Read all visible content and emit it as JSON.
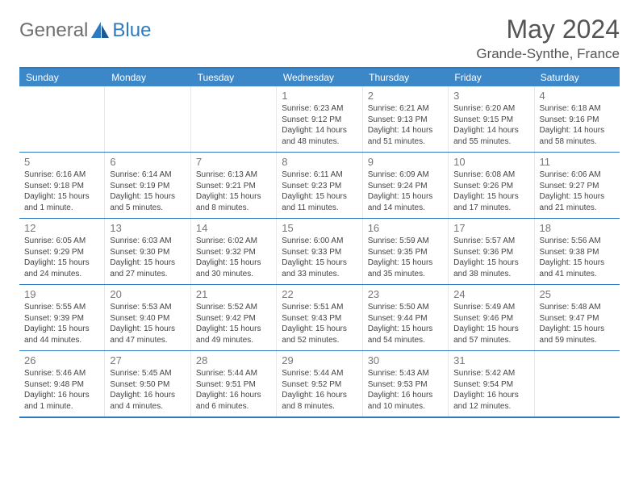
{
  "brand": {
    "left": "General",
    "right": "Blue"
  },
  "title": "May 2024",
  "location": "Grande-Synthe, France",
  "colors": {
    "header_bg": "#3b87c8",
    "border": "#2e7ac0",
    "title_text": "#555555",
    "body_text": "#444444",
    "daynum_text": "#777777",
    "logo_left": "#6f6f6f",
    "logo_right": "#2e7ac0"
  },
  "day_headers": [
    "Sunday",
    "Monday",
    "Tuesday",
    "Wednesday",
    "Thursday",
    "Friday",
    "Saturday"
  ],
  "weeks": [
    [
      {
        "n": "",
        "lines": []
      },
      {
        "n": "",
        "lines": []
      },
      {
        "n": "",
        "lines": []
      },
      {
        "n": "1",
        "lines": [
          "Sunrise: 6:23 AM",
          "Sunset: 9:12 PM",
          "Daylight: 14 hours",
          "and 48 minutes."
        ]
      },
      {
        "n": "2",
        "lines": [
          "Sunrise: 6:21 AM",
          "Sunset: 9:13 PM",
          "Daylight: 14 hours",
          "and 51 minutes."
        ]
      },
      {
        "n": "3",
        "lines": [
          "Sunrise: 6:20 AM",
          "Sunset: 9:15 PM",
          "Daylight: 14 hours",
          "and 55 minutes."
        ]
      },
      {
        "n": "4",
        "lines": [
          "Sunrise: 6:18 AM",
          "Sunset: 9:16 PM",
          "Daylight: 14 hours",
          "and 58 minutes."
        ]
      }
    ],
    [
      {
        "n": "5",
        "lines": [
          "Sunrise: 6:16 AM",
          "Sunset: 9:18 PM",
          "Daylight: 15 hours",
          "and 1 minute."
        ]
      },
      {
        "n": "6",
        "lines": [
          "Sunrise: 6:14 AM",
          "Sunset: 9:19 PM",
          "Daylight: 15 hours",
          "and 5 minutes."
        ]
      },
      {
        "n": "7",
        "lines": [
          "Sunrise: 6:13 AM",
          "Sunset: 9:21 PM",
          "Daylight: 15 hours",
          "and 8 minutes."
        ]
      },
      {
        "n": "8",
        "lines": [
          "Sunrise: 6:11 AM",
          "Sunset: 9:23 PM",
          "Daylight: 15 hours",
          "and 11 minutes."
        ]
      },
      {
        "n": "9",
        "lines": [
          "Sunrise: 6:09 AM",
          "Sunset: 9:24 PM",
          "Daylight: 15 hours",
          "and 14 minutes."
        ]
      },
      {
        "n": "10",
        "lines": [
          "Sunrise: 6:08 AM",
          "Sunset: 9:26 PM",
          "Daylight: 15 hours",
          "and 17 minutes."
        ]
      },
      {
        "n": "11",
        "lines": [
          "Sunrise: 6:06 AM",
          "Sunset: 9:27 PM",
          "Daylight: 15 hours",
          "and 21 minutes."
        ]
      }
    ],
    [
      {
        "n": "12",
        "lines": [
          "Sunrise: 6:05 AM",
          "Sunset: 9:29 PM",
          "Daylight: 15 hours",
          "and 24 minutes."
        ]
      },
      {
        "n": "13",
        "lines": [
          "Sunrise: 6:03 AM",
          "Sunset: 9:30 PM",
          "Daylight: 15 hours",
          "and 27 minutes."
        ]
      },
      {
        "n": "14",
        "lines": [
          "Sunrise: 6:02 AM",
          "Sunset: 9:32 PM",
          "Daylight: 15 hours",
          "and 30 minutes."
        ]
      },
      {
        "n": "15",
        "lines": [
          "Sunrise: 6:00 AM",
          "Sunset: 9:33 PM",
          "Daylight: 15 hours",
          "and 33 minutes."
        ]
      },
      {
        "n": "16",
        "lines": [
          "Sunrise: 5:59 AM",
          "Sunset: 9:35 PM",
          "Daylight: 15 hours",
          "and 35 minutes."
        ]
      },
      {
        "n": "17",
        "lines": [
          "Sunrise: 5:57 AM",
          "Sunset: 9:36 PM",
          "Daylight: 15 hours",
          "and 38 minutes."
        ]
      },
      {
        "n": "18",
        "lines": [
          "Sunrise: 5:56 AM",
          "Sunset: 9:38 PM",
          "Daylight: 15 hours",
          "and 41 minutes."
        ]
      }
    ],
    [
      {
        "n": "19",
        "lines": [
          "Sunrise: 5:55 AM",
          "Sunset: 9:39 PM",
          "Daylight: 15 hours",
          "and 44 minutes."
        ]
      },
      {
        "n": "20",
        "lines": [
          "Sunrise: 5:53 AM",
          "Sunset: 9:40 PM",
          "Daylight: 15 hours",
          "and 47 minutes."
        ]
      },
      {
        "n": "21",
        "lines": [
          "Sunrise: 5:52 AM",
          "Sunset: 9:42 PM",
          "Daylight: 15 hours",
          "and 49 minutes."
        ]
      },
      {
        "n": "22",
        "lines": [
          "Sunrise: 5:51 AM",
          "Sunset: 9:43 PM",
          "Daylight: 15 hours",
          "and 52 minutes."
        ]
      },
      {
        "n": "23",
        "lines": [
          "Sunrise: 5:50 AM",
          "Sunset: 9:44 PM",
          "Daylight: 15 hours",
          "and 54 minutes."
        ]
      },
      {
        "n": "24",
        "lines": [
          "Sunrise: 5:49 AM",
          "Sunset: 9:46 PM",
          "Daylight: 15 hours",
          "and 57 minutes."
        ]
      },
      {
        "n": "25",
        "lines": [
          "Sunrise: 5:48 AM",
          "Sunset: 9:47 PM",
          "Daylight: 15 hours",
          "and 59 minutes."
        ]
      }
    ],
    [
      {
        "n": "26",
        "lines": [
          "Sunrise: 5:46 AM",
          "Sunset: 9:48 PM",
          "Daylight: 16 hours",
          "and 1 minute."
        ]
      },
      {
        "n": "27",
        "lines": [
          "Sunrise: 5:45 AM",
          "Sunset: 9:50 PM",
          "Daylight: 16 hours",
          "and 4 minutes."
        ]
      },
      {
        "n": "28",
        "lines": [
          "Sunrise: 5:44 AM",
          "Sunset: 9:51 PM",
          "Daylight: 16 hours",
          "and 6 minutes."
        ]
      },
      {
        "n": "29",
        "lines": [
          "Sunrise: 5:44 AM",
          "Sunset: 9:52 PM",
          "Daylight: 16 hours",
          "and 8 minutes."
        ]
      },
      {
        "n": "30",
        "lines": [
          "Sunrise: 5:43 AM",
          "Sunset: 9:53 PM",
          "Daylight: 16 hours",
          "and 10 minutes."
        ]
      },
      {
        "n": "31",
        "lines": [
          "Sunrise: 5:42 AM",
          "Sunset: 9:54 PM",
          "Daylight: 16 hours",
          "and 12 minutes."
        ]
      },
      {
        "n": "",
        "lines": []
      }
    ]
  ]
}
